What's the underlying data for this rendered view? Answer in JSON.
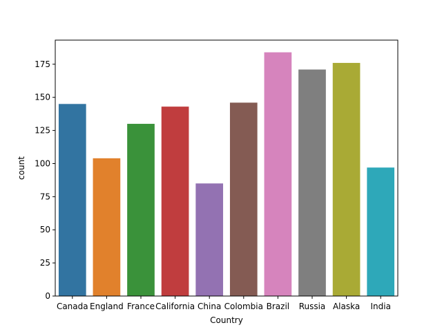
{
  "chart_data": {
    "type": "bar",
    "title": "",
    "xlabel": "Country",
    "ylabel": "count",
    "categories": [
      "Canada",
      "England",
      "France",
      "California",
      "China",
      "Colombia",
      "Brazil",
      "Russia",
      "Alaska",
      "India"
    ],
    "values": [
      145,
      104,
      130,
      143,
      85,
      146,
      184,
      171,
      176,
      97
    ],
    "colors": [
      "#3274a1",
      "#e1812c",
      "#3a923a",
      "#c03d3e",
      "#9372b2",
      "#845b53",
      "#d684bd",
      "#7f7f7f",
      "#a9aa35",
      "#2ea8b9"
    ],
    "ylim": [
      0,
      193.2
    ],
    "yticks": [
      0,
      25,
      50,
      75,
      100,
      125,
      150,
      175
    ],
    "grid": false,
    "legend": "none"
  }
}
